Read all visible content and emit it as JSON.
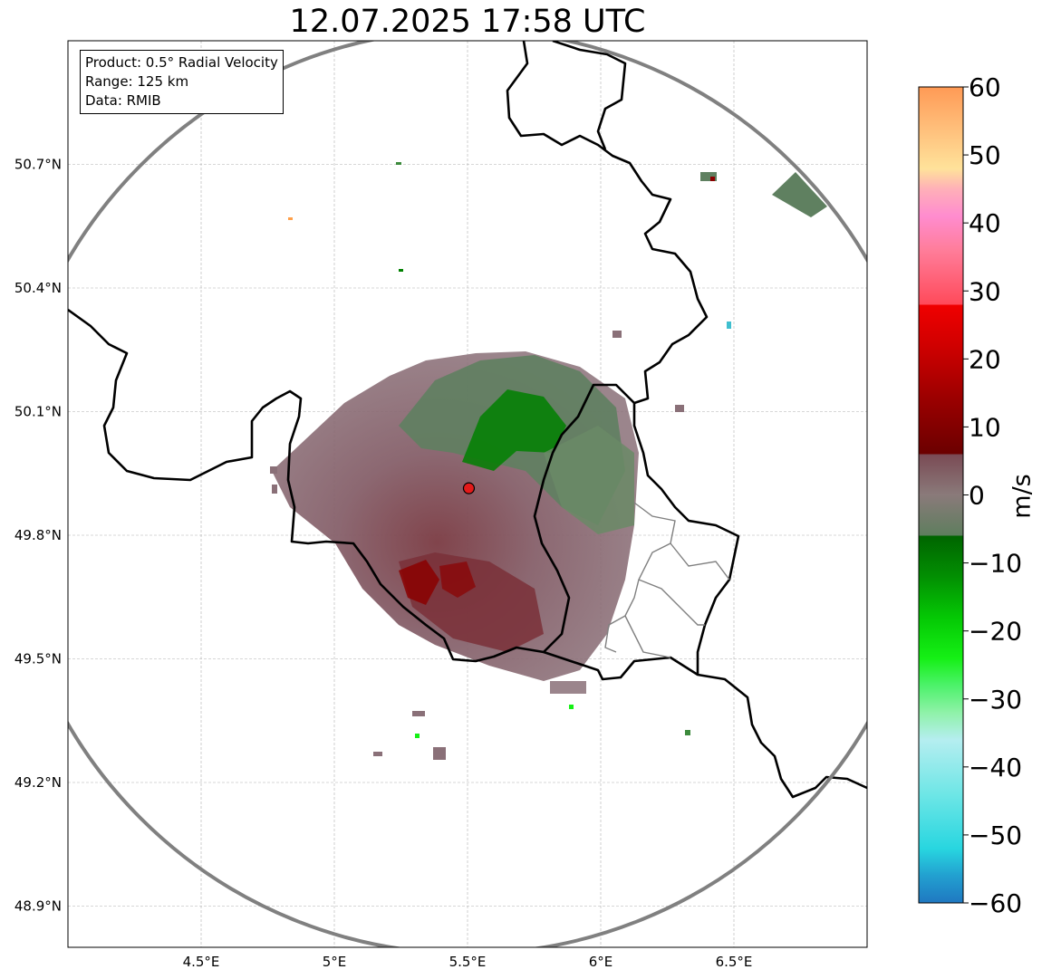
{
  "title": "12.07.2025 17:58 UTC",
  "info_box": {
    "product": "Product: 0.5° Radial Velocity",
    "range": "Range: 125 km",
    "data": "Data: RMIB"
  },
  "map": {
    "lon_range": [
      4.0,
      7.0
    ],
    "lat_range": [
      48.8,
      51.0
    ],
    "lon_ticks": [
      {
        "value": 4.5,
        "label": "4.5°E"
      },
      {
        "value": 5.0,
        "label": "5°E"
      },
      {
        "value": 5.5,
        "label": "5.5°E"
      },
      {
        "value": 6.0,
        "label": "6°E"
      },
      {
        "value": 6.5,
        "label": "6.5°E"
      }
    ],
    "lat_ticks": [
      {
        "value": 50.7,
        "label": "50.7°N"
      },
      {
        "value": 50.4,
        "label": "50.4°N"
      },
      {
        "value": 50.1,
        "label": "50.1°N"
      },
      {
        "value": 49.8,
        "label": "49.8°N"
      },
      {
        "value": 49.5,
        "label": "49.5°N"
      },
      {
        "value": 49.2,
        "label": "49.2°N"
      },
      {
        "value": 48.9,
        "label": "48.9°N"
      }
    ],
    "radar_site": {
      "lon": 5.505,
      "lat": 49.914
    },
    "range_ring_km": 125
  },
  "colorbar": {
    "label": "m/s",
    "min": -60,
    "max": 60,
    "ticks": [
      {
        "value": 60,
        "label": "60"
      },
      {
        "value": 50,
        "label": "50"
      },
      {
        "value": 40,
        "label": "40"
      },
      {
        "value": 30,
        "label": "30"
      },
      {
        "value": 20,
        "label": "20"
      },
      {
        "value": 10,
        "label": "10"
      },
      {
        "value": 0,
        "label": "0"
      },
      {
        "value": -10,
        "label": "−10"
      },
      {
        "value": -20,
        "label": "−20"
      },
      {
        "value": -30,
        "label": "−30"
      },
      {
        "value": -40,
        "label": "−40"
      },
      {
        "value": -50,
        "label": "−50"
      },
      {
        "value": -60,
        "label": "−60"
      }
    ],
    "stops": [
      {
        "v": -60,
        "c": "#1f78c1"
      },
      {
        "v": -56,
        "c": "#22a0d0"
      },
      {
        "v": -52,
        "c": "#28d6e0"
      },
      {
        "v": -44,
        "c": "#6ee6e6"
      },
      {
        "v": -36,
        "c": "#b5eef0"
      },
      {
        "v": -32,
        "c": "#8ff2a8"
      },
      {
        "v": -28,
        "c": "#4cf26a"
      },
      {
        "v": -24,
        "c": "#15f015"
      },
      {
        "v": -18,
        "c": "#04c804"
      },
      {
        "v": -12,
        "c": "#028f02"
      },
      {
        "v": -6,
        "c": "#006400"
      },
      {
        "v": -6,
        "c": "#5e7e5e"
      },
      {
        "v": 0,
        "c": "#8a7a7a"
      },
      {
        "v": 6,
        "c": "#7a4a54"
      },
      {
        "v": 6,
        "c": "#6b0000"
      },
      {
        "v": 14,
        "c": "#9a0000"
      },
      {
        "v": 22,
        "c": "#d00000"
      },
      {
        "v": 28,
        "c": "#f00000"
      },
      {
        "v": 28,
        "c": "#ff4a5a"
      },
      {
        "v": 36,
        "c": "#ff7d9a"
      },
      {
        "v": 41,
        "c": "#ff8ccf"
      },
      {
        "v": 45,
        "c": "#ffb0b8"
      },
      {
        "v": 48,
        "c": "#ffe29a"
      },
      {
        "v": 54,
        "c": "#ffbe7a"
      },
      {
        "v": 60,
        "c": "#ff9a55"
      }
    ]
  },
  "colors": {
    "recede": "#7a3a42",
    "approach": "#5f8060",
    "strong_approach": "#007a00",
    "strong_recede": "#8b0000",
    "ring": "#808080"
  }
}
